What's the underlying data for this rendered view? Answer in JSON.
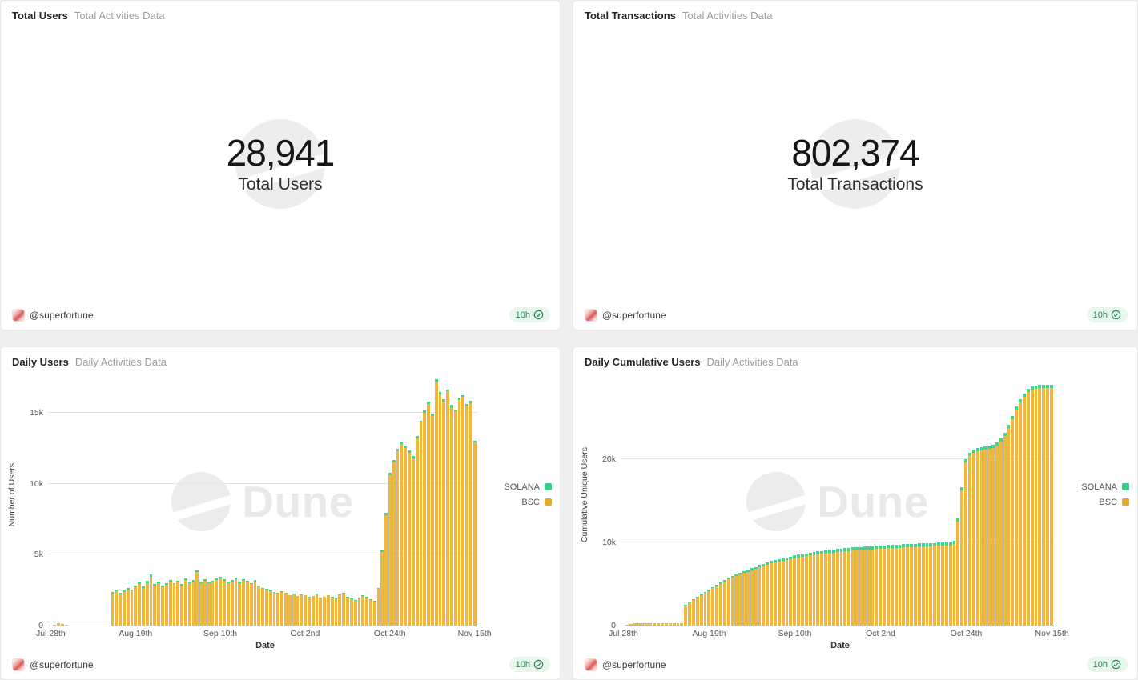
{
  "footer": {
    "author": "@superfortune",
    "freshness": "10h"
  },
  "watermark": "Dune",
  "colors": {
    "bsc": "#f0b73c",
    "solana": "#3bd68f",
    "legend_bsc": "#e6a92e",
    "legend_solana": "#3ecc8c",
    "badge_green": "#1f8a55"
  },
  "panels": {
    "total_users": {
      "title": "Total Users",
      "subtitle": "Total Activities Data"
    },
    "total_transactions": {
      "title": "Total Transactions",
      "subtitle": "Total Activities Data"
    },
    "daily_users": {
      "title": "Daily Users",
      "subtitle": "Daily Activities Data"
    },
    "daily_cumulative_users": {
      "title": "Daily Cumulative Users",
      "subtitle": "Daily Activities Data"
    }
  },
  "chart_data": [
    {
      "type": "counter",
      "title": "Total Users",
      "value": 28941,
      "display": "28,941",
      "label": "Total Users"
    },
    {
      "type": "counter",
      "title": "Total Transactions",
      "value": 802374,
      "display": "802,374",
      "label": "Total Transactions"
    },
    {
      "type": "bar",
      "stacked": true,
      "title": "Daily Users",
      "xlabel": "Date",
      "ylabel": "Number of Users",
      "ylim": [
        0,
        17500
      ],
      "x_unit": "day",
      "x_start": "Jul 28th",
      "x_end": "Nov 15th",
      "grid": "horizontal",
      "legend_position": "right",
      "yticks": [
        {
          "value": 0,
          "label": "0"
        },
        {
          "value": 5000,
          "label": "5k"
        },
        {
          "value": 10000,
          "label": "10k"
        },
        {
          "value": 15000,
          "label": "15k"
        }
      ],
      "x_tick_labels": [
        "Jul 28th",
        "Aug 19th",
        "Sep 10th",
        "Oct 2nd",
        "Oct 24th",
        "Nov 15th"
      ],
      "x_tick_indices": [
        0,
        22,
        44,
        66,
        88,
        110
      ],
      "legend": [
        {
          "name": "SOLANA",
          "color": "#3ecc8c"
        },
        {
          "name": "BSC",
          "color": "#e6a92e"
        }
      ],
      "series": [
        {
          "name": "BSC",
          "color": "#f0b73c",
          "values": [
            0,
            40,
            130,
            90,
            50,
            0,
            0,
            0,
            0,
            0,
            0,
            0,
            0,
            0,
            0,
            0,
            2250,
            2400,
            2200,
            2350,
            2500,
            2450,
            2700,
            2900,
            2650,
            3000,
            3450,
            2800,
            2950,
            2700,
            2850,
            3100,
            2900,
            3050,
            2800,
            3200,
            2950,
            3100,
            3750,
            3000,
            3150,
            2950,
            3050,
            3200,
            3300,
            3150,
            2950,
            3100,
            3250,
            3000,
            3150,
            3050,
            2900,
            3100,
            2750,
            2600,
            2500,
            2400,
            2300,
            2250,
            2350,
            2250,
            2100,
            2200,
            2050,
            2150,
            2100,
            1950,
            2050,
            2200,
            1900,
            2000,
            2100,
            1950,
            1850,
            2150,
            2250,
            1950,
            1850,
            1750,
            1900,
            2050,
            1950,
            1800,
            1700,
            2600,
            5200,
            7800,
            10600,
            11500,
            12300,
            12800,
            12500,
            12200,
            11800,
            13200,
            14300,
            15000,
            15600,
            14800,
            17200,
            16300,
            15800,
            16500,
            15400,
            15100,
            15900,
            16100,
            15500,
            15700,
            12900
          ]
        },
        {
          "name": "SOLANA",
          "color": "#3bd68f",
          "values": [
            0,
            0,
            10,
            10,
            0,
            0,
            0,
            0,
            0,
            0,
            0,
            0,
            0,
            0,
            0,
            0,
            90,
            110,
            80,
            100,
            120,
            100,
            130,
            110,
            90,
            120,
            140,
            100,
            110,
            90,
            100,
            120,
            100,
            110,
            90,
            130,
            100,
            110,
            150,
            100,
            110,
            90,
            100,
            110,
            120,
            100,
            90,
            100,
            110,
            90,
            100,
            90,
            80,
            90,
            70,
            60,
            60,
            50,
            50,
            40,
            50,
            40,
            40,
            50,
            40,
            40,
            40,
            40,
            40,
            50,
            40,
            40,
            40,
            40,
            40,
            50,
            50,
            40,
            40,
            40,
            40,
            50,
            40,
            40,
            40,
            60,
            100,
            140,
            180,
            160,
            150,
            150,
            140,
            140,
            130,
            150,
            160,
            160,
            170,
            150,
            180,
            160,
            150,
            160,
            150,
            140,
            150,
            150,
            140,
            140,
            120
          ]
        }
      ]
    },
    {
      "type": "bar",
      "stacked": true,
      "title": "Daily Cumulative Users",
      "xlabel": "Date",
      "ylabel": "Cumulative Unique Users",
      "ylim": [
        0,
        29800
      ],
      "x_unit": "day",
      "x_start": "Jul 28th",
      "x_end": "Nov 15th",
      "grid": "horizontal",
      "legend_position": "right",
      "yticks": [
        {
          "value": 0,
          "label": "0"
        },
        {
          "value": 10000,
          "label": "10k"
        },
        {
          "value": 20000,
          "label": "20k"
        }
      ],
      "x_tick_labels": [
        "Jul 28th",
        "Aug 19th",
        "Sep 10th",
        "Oct 2nd",
        "Oct 24th",
        "Nov 15th"
      ],
      "x_tick_indices": [
        0,
        22,
        44,
        66,
        88,
        110
      ],
      "legend": [
        {
          "name": "SOLANA",
          "color": "#3ecc8c"
        },
        {
          "name": "BSC",
          "color": "#e6a92e"
        }
      ],
      "series": [
        {
          "name": "BSC",
          "color": "#f0b73c",
          "values": [
            0,
            40,
            170,
            250,
            290,
            295,
            295,
            295,
            295,
            295,
            295,
            295,
            295,
            295,
            295,
            295,
            2400,
            2750,
            3050,
            3350,
            3650,
            3900,
            4150,
            4450,
            4700,
            4950,
            5250,
            5500,
            5700,
            5900,
            6100,
            6300,
            6450,
            6600,
            6750,
            6950,
            7100,
            7250,
            7450,
            7550,
            7650,
            7750,
            7850,
            7950,
            8050,
            8150,
            8230,
            8310,
            8390,
            8460,
            8530,
            8590,
            8650,
            8710,
            8760,
            8810,
            8860,
            8900,
            8940,
            8980,
            9020,
            9050,
            9080,
            9110,
            9140,
            9170,
            9200,
            9230,
            9260,
            9290,
            9310,
            9330,
            9360,
            9380,
            9400,
            9430,
            9460,
            9480,
            9500,
            9520,
            9540,
            9560,
            9580,
            9600,
            9620,
            9800,
            12500,
            16200,
            19600,
            20400,
            20700,
            20900,
            21000,
            21100,
            21200,
            21350,
            21600,
            22100,
            22800,
            23700,
            24800,
            25900,
            26800,
            27500,
            28000,
            28300,
            28450,
            28520,
            28550,
            28560,
            28560
          ]
        },
        {
          "name": "SOLANA",
          "color": "#3bd68f",
          "values": [
            0,
            0,
            0,
            0,
            0,
            0,
            0,
            0,
            0,
            0,
            0,
            0,
            0,
            0,
            0,
            0,
            60,
            80,
            95,
            110,
            125,
            140,
            155,
            170,
            180,
            190,
            205,
            215,
            225,
            235,
            245,
            255,
            262,
            270,
            277,
            285,
            292,
            298,
            306,
            311,
            316,
            321,
            326,
            330,
            334,
            338,
            341,
            344,
            347,
            350,
            353,
            355,
            357,
            359,
            361,
            363,
            364,
            365,
            366,
            367,
            368,
            369,
            370,
            371,
            372,
            373,
            374,
            374,
            375,
            375,
            376,
            376,
            377,
            377,
            378,
            378,
            379,
            379,
            379,
            380,
            380,
            380,
            380,
            380,
            380,
            381,
            381,
            381,
            381,
            381,
            381,
            381,
            381,
            381,
            381,
            381,
            381,
            381,
            381,
            381,
            381,
            381,
            381,
            381,
            381,
            381,
            381,
            381,
            381,
            381,
            381
          ]
        }
      ]
    }
  ]
}
